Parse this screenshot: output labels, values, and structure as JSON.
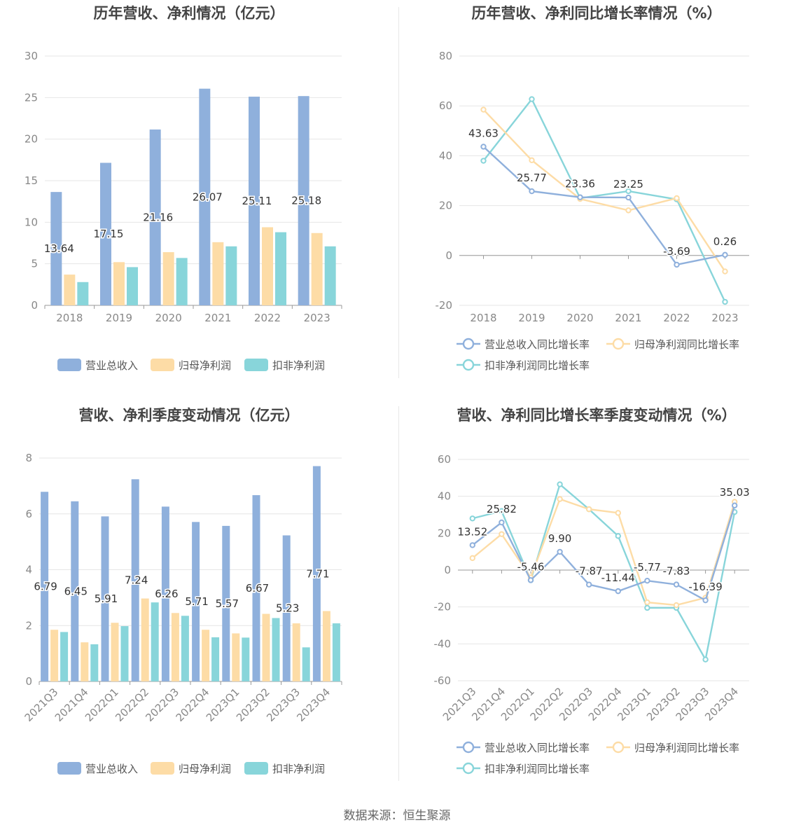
{
  "footer": {
    "source": "数据来源：恒生聚源"
  },
  "colors": {
    "revenue": "#8fb0dc",
    "net_profit": "#fddca6",
    "deducted": "#88d5da",
    "grid": "#e6e6e6",
    "axis": "#999999"
  },
  "chart_data": [
    {
      "id": "annual-values",
      "type": "bar",
      "title": "历年营收、净利情况（亿元）",
      "categories": [
        "2018",
        "2019",
        "2020",
        "2021",
        "2022",
        "2023"
      ],
      "ylim": [
        0,
        30
      ],
      "yticks": [
        0,
        5,
        10,
        15,
        20,
        25,
        30
      ],
      "series": [
        {
          "name": "营业总收入",
          "values": [
            13.64,
            17.15,
            21.16,
            26.07,
            25.11,
            25.18
          ],
          "labels": [
            "13.64",
            "17.15",
            "21.16",
            "26.07",
            "25.11",
            "25.18"
          ]
        },
        {
          "name": "归母净利润",
          "values": [
            3.7,
            5.2,
            6.4,
            7.6,
            9.4,
            8.7
          ],
          "labels": []
        },
        {
          "name": "扣非净利润",
          "values": [
            2.8,
            4.6,
            5.7,
            7.1,
            8.8,
            7.1
          ],
          "labels": []
        }
      ],
      "legend": "bottom"
    },
    {
      "id": "annual-growth",
      "type": "line",
      "title": "历年营收、净利同比增长率情况（%）",
      "categories": [
        "2018",
        "2019",
        "2020",
        "2021",
        "2022",
        "2023"
      ],
      "ylim": [
        -20,
        80
      ],
      "yticks": [
        -20,
        0,
        20,
        40,
        60,
        80
      ],
      "series": [
        {
          "name": "营业总收入同比增长率",
          "values": [
            43.63,
            25.77,
            23.36,
            23.25,
            -3.69,
            0.26
          ],
          "labels": [
            "43.63",
            "25.77",
            "23.36",
            "23.25",
            "-3.69",
            "0.26"
          ]
        },
        {
          "name": "归母净利润同比增长率",
          "values": [
            58.5,
            38.2,
            22.7,
            18.1,
            23.0,
            -6.4
          ],
          "labels": []
        },
        {
          "name": "扣非净利润同比增长率",
          "values": [
            38.0,
            62.7,
            23.0,
            25.8,
            22.5,
            -18.6
          ],
          "labels": []
        }
      ],
      "legend": "bottom"
    },
    {
      "id": "quarterly-values",
      "type": "bar",
      "title": "营收、净利季度变动情况（亿元）",
      "categories": [
        "2021Q3",
        "2021Q4",
        "2022Q1",
        "2022Q2",
        "2022Q3",
        "2022Q4",
        "2023Q1",
        "2023Q2",
        "2023Q3",
        "2023Q4"
      ],
      "ylim": [
        0,
        8
      ],
      "yticks": [
        0,
        2,
        4,
        6,
        8
      ],
      "series": [
        {
          "name": "营业总收入",
          "values": [
            6.79,
            6.45,
            5.91,
            7.24,
            6.26,
            5.71,
            5.57,
            6.67,
            5.23,
            7.71
          ],
          "labels": [
            "6.79",
            "6.45",
            "5.91",
            "7.24",
            "6.26",
            "5.71",
            "5.57",
            "6.67",
            "5.23",
            "7.71"
          ]
        },
        {
          "name": "归母净利润",
          "values": [
            1.85,
            1.4,
            2.1,
            2.97,
            2.45,
            1.85,
            1.72,
            2.42,
            2.08,
            2.52
          ],
          "labels": []
        },
        {
          "name": "扣非净利润",
          "values": [
            1.77,
            1.33,
            1.98,
            2.83,
            2.35,
            1.58,
            1.57,
            2.27,
            1.22,
            2.08
          ],
          "labels": []
        }
      ],
      "legend": "bottom"
    },
    {
      "id": "quarterly-growth",
      "type": "line",
      "title": "营收、净利同比增长率季度变动情况（%）",
      "categories": [
        "2021Q3",
        "2021Q4",
        "2022Q1",
        "2022Q2",
        "2022Q3",
        "2022Q4",
        "2023Q1",
        "2023Q2",
        "2023Q3",
        "2023Q4"
      ],
      "ylim": [
        -60,
        60
      ],
      "yticks": [
        -60,
        -40,
        -20,
        0,
        20,
        40,
        60
      ],
      "series": [
        {
          "name": "营业总收入同比增长率",
          "values": [
            13.52,
            25.82,
            -5.46,
            9.9,
            -7.87,
            -11.44,
            -5.77,
            -7.83,
            -16.39,
            35.03
          ],
          "labels": [
            "13.52",
            "25.82",
            "-5.46",
            "9.90",
            "-7.87",
            "-11.44",
            "-5.77",
            "-7.83",
            "-16.39",
            "35.03"
          ]
        },
        {
          "name": "归母净利润同比增长率",
          "values": [
            6.5,
            19.5,
            -4.0,
            38.5,
            33.0,
            31.0,
            -17.5,
            -19.0,
            -15.0,
            37.0
          ],
          "labels": []
        },
        {
          "name": "扣非净利润同比增长率",
          "values": [
            28.0,
            32.0,
            -5.5,
            46.5,
            33.0,
            18.5,
            -20.5,
            -20.5,
            -48.5,
            31.5
          ],
          "labels": []
        }
      ],
      "legend": "bottom"
    }
  ]
}
